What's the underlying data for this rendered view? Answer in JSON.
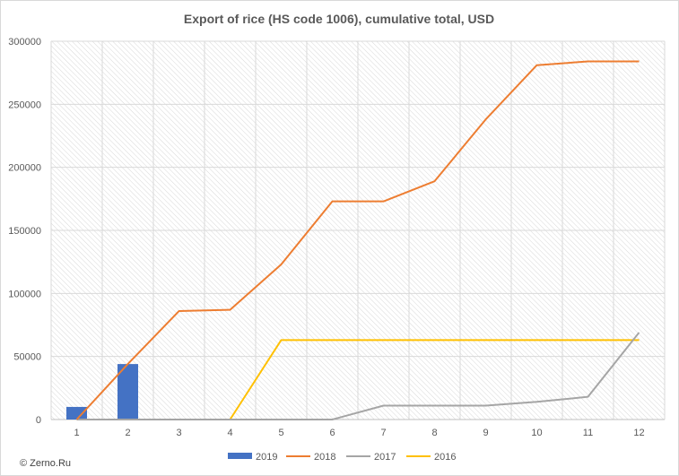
{
  "chart_data": {
    "type": "bar",
    "title": "Export of rice (HS code 1006), cumulative total, USD",
    "xlabel": "",
    "ylabel": "",
    "categories": [
      "1",
      "2",
      "3",
      "4",
      "5",
      "6",
      "7",
      "8",
      "9",
      "10",
      "11",
      "12"
    ],
    "ylim": [
      0,
      300000
    ],
    "yticks": [
      "0",
      "50000",
      "100000",
      "150000",
      "200000",
      "250000",
      "300000"
    ],
    "grid": true,
    "legend_position": "bottom",
    "series": [
      {
        "name": "2019",
        "kind": "bar",
        "color": "#4472c4",
        "values": [
          10000,
          44000,
          null,
          null,
          null,
          null,
          null,
          null,
          null,
          null,
          null,
          null
        ]
      },
      {
        "name": "2018",
        "kind": "line",
        "color": "#ed7d31",
        "values": [
          0,
          44000,
          86000,
          87000,
          123000,
          173000,
          173000,
          189000,
          238000,
          281000,
          284000,
          284000
        ]
      },
      {
        "name": "2017",
        "kind": "line",
        "color": "#a5a5a5",
        "values": [
          0,
          0,
          0,
          0,
          0,
          0,
          11000,
          11000,
          11000,
          14000,
          18000,
          69000
        ]
      },
      {
        "name": "2016",
        "kind": "line",
        "color": "#ffc000",
        "values": [
          0,
          0,
          0,
          0,
          63000,
          63000,
          63000,
          63000,
          63000,
          63000,
          63000,
          63000
        ]
      }
    ]
  },
  "footer": {
    "credit": "© Zerno.Ru"
  }
}
